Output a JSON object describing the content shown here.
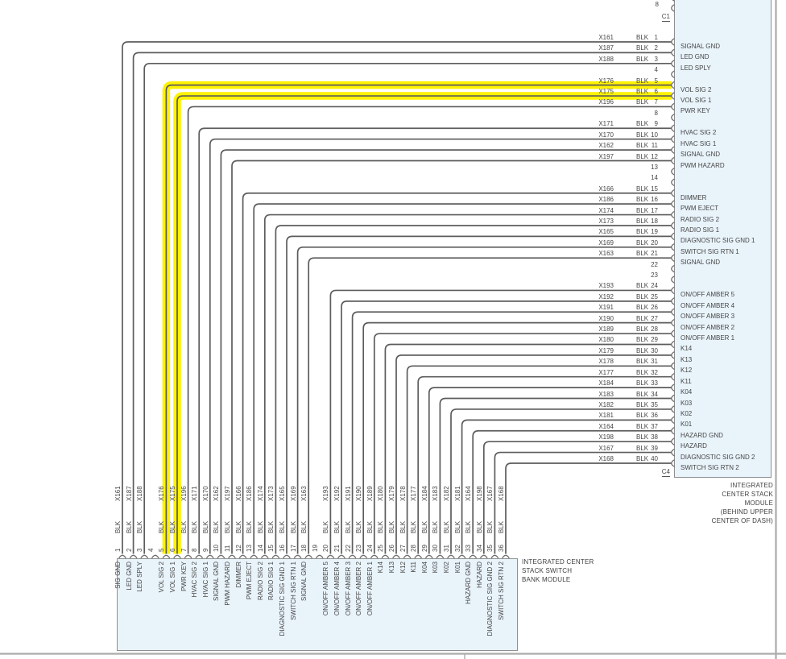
{
  "colors": {
    "highlight": "#fff200",
    "module_fill": "#e8f3fa",
    "module_border": "#8f8f8f",
    "wire": "#5c5c5c",
    "bracket": "#6e6e6e",
    "frame": "#ababab"
  },
  "right_module": {
    "name_lines": [
      "INTEGRATED",
      "CENTER STACK",
      "MODULE",
      "(BEHIND UPPER",
      "CENTER OF DASH)"
    ],
    "partial_pin_above": "8",
    "connector_top_label": "C1",
    "connector_bottom_label": "C4",
    "rows": [
      {
        "pin": "1",
        "wire": "X161",
        "color": "BLK",
        "label": "SIGNAL GND"
      },
      {
        "pin": "2",
        "wire": "X187",
        "color": "BLK",
        "label": "LED GND"
      },
      {
        "pin": "3",
        "wire": "X188",
        "color": "BLK",
        "label": "LED SPLY"
      },
      {
        "pin": "4"
      },
      {
        "pin": "5",
        "wire": "X176",
        "color": "BLK",
        "label": "VOL SIG 2",
        "highlight": true
      },
      {
        "pin": "6",
        "wire": "X175",
        "color": "BLK",
        "label": "VOL SIG 1",
        "highlight": true
      },
      {
        "pin": "7",
        "wire": "X196",
        "color": "BLK",
        "label": "PWR KEY"
      },
      {
        "pin": "8"
      },
      {
        "pin": "9",
        "wire": "X171",
        "color": "BLK",
        "label": "HVAC SIG 2"
      },
      {
        "pin": "10",
        "wire": "X170",
        "color": "BLK",
        "label": "HVAC SIG 1"
      },
      {
        "pin": "11",
        "wire": "X162",
        "color": "BLK",
        "label": "SIGNAL GND"
      },
      {
        "pin": "12",
        "wire": "X197",
        "color": "BLK",
        "label": "PWM HAZARD"
      },
      {
        "pin": "13"
      },
      {
        "pin": "14"
      },
      {
        "pin": "15",
        "wire": "X166",
        "color": "BLK",
        "label": "DIMMER"
      },
      {
        "pin": "16",
        "wire": "X186",
        "color": "BLK",
        "label": "PWM EJECT"
      },
      {
        "pin": "17",
        "wire": "X174",
        "color": "BLK",
        "label": "RADIO SIG 2"
      },
      {
        "pin": "18",
        "wire": "X173",
        "color": "BLK",
        "label": "RADIO SIG 1"
      },
      {
        "pin": "19",
        "wire": "X165",
        "color": "BLK",
        "label": "DIAGNOSTIC SIG GND 1"
      },
      {
        "pin": "20",
        "wire": "X169",
        "color": "BLK",
        "label": "SWITCH SIG RTN 1"
      },
      {
        "pin": "21",
        "wire": "X163",
        "color": "BLK",
        "label": "SIGNAL GND"
      },
      {
        "pin": "22"
      },
      {
        "pin": "23"
      },
      {
        "pin": "24",
        "wire": "X193",
        "color": "BLK",
        "label": "ON/OFF AMBER 5"
      },
      {
        "pin": "25",
        "wire": "X192",
        "color": "BLK",
        "label": "ON/OFF AMBER 4"
      },
      {
        "pin": "26",
        "wire": "X191",
        "color": "BLK",
        "label": "ON/OFF AMBER 3"
      },
      {
        "pin": "27",
        "wire": "X190",
        "color": "BLK",
        "label": "ON/OFF AMBER 2"
      },
      {
        "pin": "28",
        "wire": "X189",
        "color": "BLK",
        "label": "ON/OFF AMBER 1"
      },
      {
        "pin": "29",
        "wire": "X180",
        "color": "BLK",
        "label": "K14"
      },
      {
        "pin": "30",
        "wire": "X179",
        "color": "BLK",
        "label": "K13"
      },
      {
        "pin": "31",
        "wire": "X178",
        "color": "BLK",
        "label": "K12"
      },
      {
        "pin": "32",
        "wire": "X177",
        "color": "BLK",
        "label": "K11"
      },
      {
        "pin": "33",
        "wire": "X184",
        "color": "BLK",
        "label": "K04"
      },
      {
        "pin": "34",
        "wire": "X183",
        "color": "BLK",
        "label": "K03"
      },
      {
        "pin": "35",
        "wire": "X182",
        "color": "BLK",
        "label": "K02"
      },
      {
        "pin": "36",
        "wire": "X181",
        "color": "BLK",
        "label": "K01"
      },
      {
        "pin": "37",
        "wire": "X164",
        "color": "BLK",
        "label": "HAZARD GND"
      },
      {
        "pin": "38",
        "wire": "X198",
        "color": "BLK",
        "label": "HAZARD"
      },
      {
        "pin": "39",
        "wire": "X167",
        "color": "BLK",
        "label": "DIAGNOSTIC SIG GND 2"
      },
      {
        "pin": "40",
        "wire": "X168",
        "color": "BLK",
        "label": "SWITCH SIG RTN 2"
      }
    ]
  },
  "bottom_module": {
    "name_lines": [
      "INTEGRATED CENTER",
      "STACK SWITCH",
      "BANK MODULE"
    ],
    "cols": [
      {
        "pin": "1",
        "wire": "X161",
        "color": "BLK",
        "label": "SIG GND"
      },
      {
        "pin": "2",
        "wire": "X187",
        "color": "BLK",
        "label": "LED GND"
      },
      {
        "pin": "3",
        "wire": "X188",
        "color": "BLK",
        "label": "LED SPLY"
      },
      {
        "pin": "4"
      },
      {
        "pin": "5",
        "wire": "X176",
        "color": "BLK",
        "label": "VOL SIG 2"
      },
      {
        "pin": "6",
        "wire": "X175",
        "color": "BLK",
        "label": "VOL SIG 1"
      },
      {
        "pin": "7",
        "wire": "X196",
        "color": "BLK",
        "label": "PWR KEY"
      },
      {
        "pin": "8",
        "wire": "X171",
        "color": "BLK",
        "label": "HVAC SIG 2"
      },
      {
        "pin": "9",
        "wire": "X170",
        "color": "BLK",
        "label": "HVAC SIG 1"
      },
      {
        "pin": "10",
        "wire": "X162",
        "color": "BLK",
        "label": "SIGNAL GND"
      },
      {
        "pin": "11",
        "wire": "X197",
        "color": "BLK",
        "label": "PWM HAZARD"
      },
      {
        "pin": "12",
        "wire": "X166",
        "color": "BLK",
        "label": "DIMMER"
      },
      {
        "pin": "13",
        "wire": "X186",
        "color": "BLK",
        "label": "PWM EJECT"
      },
      {
        "pin": "14",
        "wire": "X174",
        "color": "BLK",
        "label": "RADIO SIG 2"
      },
      {
        "pin": "15",
        "wire": "X173",
        "color": "BLK",
        "label": "RADIO SIG 1"
      },
      {
        "pin": "16",
        "wire": "X165",
        "color": "BLK",
        "label": "DIAGNOSTIC SIG GND 1"
      },
      {
        "pin": "17",
        "wire": "X169",
        "color": "BLK",
        "label": "SWITCH SIG RTN 1"
      },
      {
        "pin": "18",
        "wire": "X163",
        "color": "BLK",
        "label": "SIGNAL GND"
      },
      {
        "pin": "19"
      },
      {
        "pin": "20",
        "wire": "X193",
        "color": "BLK",
        "label": "ON/OFF AMBER 5"
      },
      {
        "pin": "21",
        "wire": "X192",
        "color": "BLK",
        "label": "ON/OFF AMBER 4"
      },
      {
        "pin": "22",
        "wire": "X191",
        "color": "BLK",
        "label": "ON/OFF AMBER 3"
      },
      {
        "pin": "23",
        "wire": "X190",
        "color": "BLK",
        "label": "ON/OFF AMBER 2"
      },
      {
        "pin": "24",
        "wire": "X189",
        "color": "BLK",
        "label": "ON/OFF AMBER 1"
      },
      {
        "pin": "25",
        "wire": "X180",
        "color": "BLK",
        "label": "K14"
      },
      {
        "pin": "26",
        "wire": "X179",
        "color": "BLK",
        "label": "K13"
      },
      {
        "pin": "27",
        "wire": "X178",
        "color": "BLK",
        "label": "K12"
      },
      {
        "pin": "28",
        "wire": "X177",
        "color": "BLK",
        "label": "K11"
      },
      {
        "pin": "29",
        "wire": "X184",
        "color": "BLK",
        "label": "K04"
      },
      {
        "pin": "30",
        "wire": "X183",
        "color": "BLK",
        "label": "K03"
      },
      {
        "pin": "31",
        "wire": "X182",
        "color": "BLK",
        "label": "K02"
      },
      {
        "pin": "32",
        "wire": "X181",
        "color": "BLK",
        "label": "K01"
      },
      {
        "pin": "33",
        "wire": "X164",
        "color": "BLK",
        "label": "HAZARD GND"
      },
      {
        "pin": "34",
        "wire": "X198",
        "color": "BLK",
        "label": "HAZARD"
      },
      {
        "pin": "35",
        "wire": "X167",
        "color": "BLK",
        "label": "DIAGNOSTIC SIG GND 2"
      },
      {
        "pin": "36",
        "wire": "X168",
        "color": "BLK",
        "label": "SWITCH SIG RTN 2"
      }
    ]
  }
}
